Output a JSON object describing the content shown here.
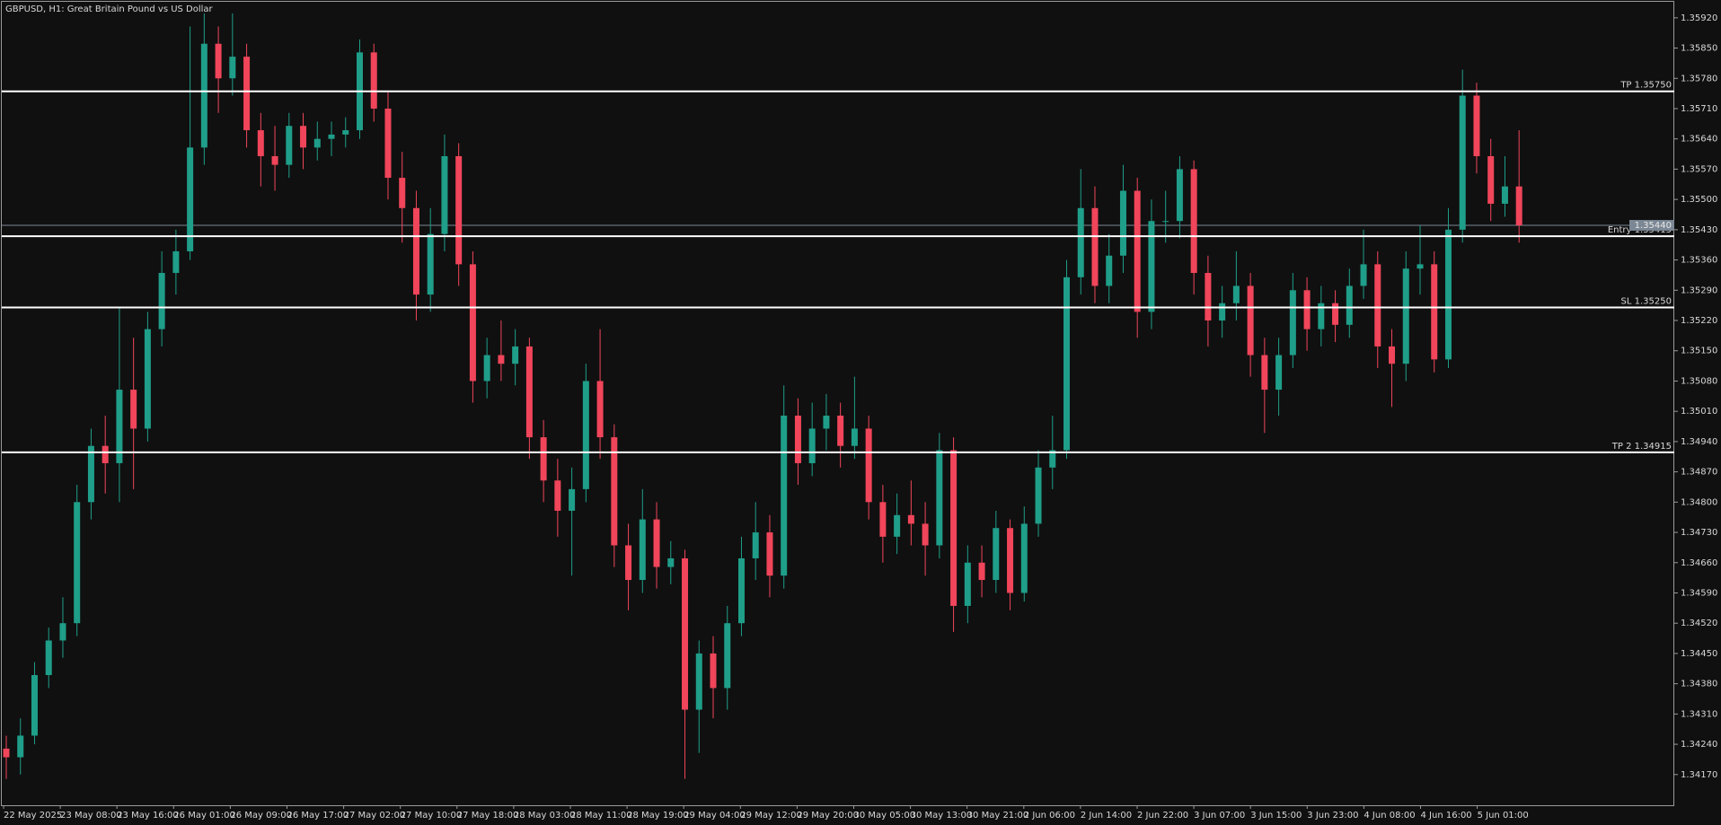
{
  "chart_data": {
    "type": "candlestick",
    "title": "GBPUSD, H1:  Great Britain Pound vs US Dollar",
    "x_labels": [
      "22 May 2025",
      "23 May 08:00",
      "23 May 16:00",
      "26 May 01:00",
      "26 May 09:00",
      "26 May 17:00",
      "27 May 02:00",
      "27 May 10:00",
      "27 May 18:00",
      "28 May 03:00",
      "28 May 11:00",
      "28 May 19:00",
      "29 May 04:00",
      "29 May 12:00",
      "29 May 20:00",
      "30 May 05:00",
      "30 May 13:00",
      "30 May 21:00",
      "2 Jun 06:00",
      "2 Jun 14:00",
      "2 Jun 22:00",
      "3 Jun 07:00",
      "3 Jun 15:00",
      "3 Jun 23:00",
      "4 Jun 08:00",
      "4 Jun 16:00",
      "5 Jun 01:00"
    ],
    "candles": [
      [
        1.3423,
        1.3426,
        1.3416,
        1.3421
      ],
      [
        1.3421,
        1.343,
        1.3417,
        1.3426
      ],
      [
        1.3426,
        1.3443,
        1.3424,
        1.344
      ],
      [
        1.344,
        1.3451,
        1.3437,
        1.3448
      ],
      [
        1.3448,
        1.3458,
        1.3444,
        1.3452
      ],
      [
        1.3452,
        1.3484,
        1.3449,
        1.348
      ],
      [
        1.348,
        1.3497,
        1.3476,
        1.3493
      ],
      [
        1.3493,
        1.35,
        1.3482,
        1.3489
      ],
      [
        1.3489,
        1.3525,
        1.348,
        1.3506
      ],
      [
        1.3506,
        1.3518,
        1.3483,
        1.3497
      ],
      [
        1.3497,
        1.3524,
        1.3494,
        1.352
      ],
      [
        1.352,
        1.3538,
        1.3516,
        1.3533
      ],
      [
        1.3533,
        1.3543,
        1.3528,
        1.3538
      ],
      [
        1.3538,
        1.359,
        1.3536,
        1.3562
      ],
      [
        1.3562,
        1.3593,
        1.3558,
        1.3586
      ],
      [
        1.3586,
        1.359,
        1.357,
        1.3578
      ],
      [
        1.3578,
        1.3593,
        1.3574,
        1.3583
      ],
      [
        1.3583,
        1.3586,
        1.3562,
        1.3566
      ],
      [
        1.3566,
        1.357,
        1.3553,
        1.356
      ],
      [
        1.356,
        1.3567,
        1.3552,
        1.3558
      ],
      [
        1.3558,
        1.357,
        1.3555,
        1.3567
      ],
      [
        1.3567,
        1.357,
        1.3557,
        1.3562
      ],
      [
        1.3562,
        1.3568,
        1.3559,
        1.3564
      ],
      [
        1.3564,
        1.3568,
        1.356,
        1.3565
      ],
      [
        1.3565,
        1.3569,
        1.3562,
        1.3566
      ],
      [
        1.3566,
        1.3587,
        1.3564,
        1.3584
      ],
      [
        1.3584,
        1.3586,
        1.3568,
        1.3571
      ],
      [
        1.3571,
        1.3575,
        1.355,
        1.3555
      ],
      [
        1.3555,
        1.3561,
        1.354,
        1.3548
      ],
      [
        1.3548,
        1.3552,
        1.3522,
        1.3528
      ],
      [
        1.3528,
        1.3548,
        1.3524,
        1.3542
      ],
      [
        1.3542,
        1.3565,
        1.3538,
        1.356
      ],
      [
        1.356,
        1.3563,
        1.353,
        1.3535
      ],
      [
        1.3535,
        1.3538,
        1.3503,
        1.3508
      ],
      [
        1.3508,
        1.3518,
        1.3504,
        1.3514
      ],
      [
        1.3514,
        1.3522,
        1.3508,
        1.3512
      ],
      [
        1.3512,
        1.352,
        1.3507,
        1.3516
      ],
      [
        1.3516,
        1.3518,
        1.349,
        1.3495
      ],
      [
        1.3495,
        1.3499,
        1.348,
        1.3485
      ],
      [
        1.3485,
        1.349,
        1.3472,
        1.3478
      ],
      [
        1.3478,
        1.3488,
        1.3463,
        1.3483
      ],
      [
        1.3483,
        1.3512,
        1.348,
        1.3508
      ],
      [
        1.3508,
        1.352,
        1.349,
        1.3495
      ],
      [
        1.3495,
        1.3498,
        1.3465,
        1.347
      ],
      [
        1.347,
        1.3475,
        1.3455,
        1.3462
      ],
      [
        1.3462,
        1.3483,
        1.3459,
        1.3476
      ],
      [
        1.3476,
        1.348,
        1.346,
        1.3465
      ],
      [
        1.3465,
        1.3471,
        1.3461,
        1.3467
      ],
      [
        1.3467,
        1.3469,
        1.3416,
        1.3432
      ],
      [
        1.3432,
        1.3448,
        1.3422,
        1.3445
      ],
      [
        1.3445,
        1.3449,
        1.343,
        1.3437
      ],
      [
        1.3437,
        1.3456,
        1.3432,
        1.3452
      ],
      [
        1.3452,
        1.3472,
        1.3449,
        1.3467
      ],
      [
        1.3467,
        1.348,
        1.3462,
        1.3473
      ],
      [
        1.3473,
        1.3477,
        1.3458,
        1.3463
      ],
      [
        1.3463,
        1.3507,
        1.346,
        1.35
      ],
      [
        1.35,
        1.3504,
        1.3484,
        1.3489
      ],
      [
        1.3489,
        1.3503,
        1.3486,
        1.3497
      ],
      [
        1.3497,
        1.3505,
        1.3492,
        1.35
      ],
      [
        1.35,
        1.3503,
        1.3488,
        1.3493
      ],
      [
        1.3493,
        1.3509,
        1.349,
        1.3497
      ],
      [
        1.3497,
        1.35,
        1.3476,
        1.348
      ],
      [
        1.348,
        1.3484,
        1.3466,
        1.3472
      ],
      [
        1.3472,
        1.3482,
        1.3468,
        1.3477
      ],
      [
        1.3477,
        1.3485,
        1.347,
        1.3475
      ],
      [
        1.3475,
        1.348,
        1.3463,
        1.347
      ],
      [
        1.347,
        1.3496,
        1.3467,
        1.3492
      ],
      [
        1.3492,
        1.3495,
        1.345,
        1.3456
      ],
      [
        1.3456,
        1.347,
        1.3452,
        1.3466
      ],
      [
        1.3466,
        1.347,
        1.3458,
        1.3462
      ],
      [
        1.3462,
        1.3478,
        1.3459,
        1.3474
      ],
      [
        1.3474,
        1.3476,
        1.3455,
        1.3459
      ],
      [
        1.3459,
        1.3479,
        1.3457,
        1.3475
      ],
      [
        1.3475,
        1.3492,
        1.3472,
        1.3488
      ],
      [
        1.3488,
        1.35,
        1.3483,
        1.3492
      ],
      [
        1.3492,
        1.3536,
        1.349,
        1.3532
      ],
      [
        1.3532,
        1.3557,
        1.3528,
        1.3548
      ],
      [
        1.3548,
        1.3553,
        1.3526,
        1.353
      ],
      [
        1.353,
        1.3542,
        1.3526,
        1.3537
      ],
      [
        1.3537,
        1.3558,
        1.3533,
        1.3552
      ],
      [
        1.3552,
        1.3555,
        1.3518,
        1.3524
      ],
      [
        1.3524,
        1.355,
        1.352,
        1.3545
      ],
      [
        1.3545,
        1.3552,
        1.354,
        1.3545
      ],
      [
        1.3545,
        1.356,
        1.3541,
        1.3557
      ],
      [
        1.3557,
        1.3559,
        1.3528,
        1.3533
      ],
      [
        1.3533,
        1.3537,
        1.3516,
        1.3522
      ],
      [
        1.3522,
        1.353,
        1.3518,
        1.3526
      ],
      [
        1.3526,
        1.3538,
        1.3522,
        1.353
      ],
      [
        1.353,
        1.3533,
        1.3509,
        1.3514
      ],
      [
        1.3514,
        1.3518,
        1.3496,
        1.3506
      ],
      [
        1.3506,
        1.3518,
        1.35,
        1.3514
      ],
      [
        1.3514,
        1.3533,
        1.3511,
        1.3529
      ],
      [
        1.3529,
        1.3532,
        1.3515,
        1.352
      ],
      [
        1.352,
        1.353,
        1.3516,
        1.3526
      ],
      [
        1.3526,
        1.3529,
        1.3517,
        1.3521
      ],
      [
        1.3521,
        1.3534,
        1.3518,
        1.353
      ],
      [
        1.353,
        1.3543,
        1.3527,
        1.3535
      ],
      [
        1.3535,
        1.3538,
        1.3511,
        1.3516
      ],
      [
        1.3516,
        1.352,
        1.3502,
        1.3512
      ],
      [
        1.3512,
        1.3538,
        1.3508,
        1.3534
      ],
      [
        1.3534,
        1.3544,
        1.3528,
        1.3535
      ],
      [
        1.3535,
        1.3538,
        1.351,
        1.3513
      ],
      [
        1.3513,
        1.3548,
        1.3511,
        1.3543
      ],
      [
        1.3543,
        1.358,
        1.354,
        1.3574
      ],
      [
        1.3574,
        1.3577,
        1.3556,
        1.356
      ],
      [
        1.356,
        1.3564,
        1.3545,
        1.3549
      ],
      [
        1.3549,
        1.356,
        1.3546,
        1.3553
      ],
      [
        1.3553,
        1.3566,
        1.354,
        1.3544
      ]
    ],
    "ylim": [
      1.34099,
      1.35957
    ],
    "yticks": [
      {
        "value": 1.3417,
        "label": "1.34170"
      },
      {
        "value": 1.3424,
        "label": "1.34240"
      },
      {
        "value": 1.3431,
        "label": "1.34310"
      },
      {
        "value": 1.3438,
        "label": "1.34380"
      },
      {
        "value": 1.3445,
        "label": "1.34450"
      },
      {
        "value": 1.3452,
        "label": "1.34520"
      },
      {
        "value": 1.3459,
        "label": "1.34590"
      },
      {
        "value": 1.3466,
        "label": "1.34660"
      },
      {
        "value": 1.3473,
        "label": "1.34730"
      },
      {
        "value": 1.348,
        "label": "1.34800"
      },
      {
        "value": 1.3487,
        "label": "1.34870"
      },
      {
        "value": 1.3494,
        "label": "1.34940"
      },
      {
        "value": 1.3501,
        "label": "1.35010"
      },
      {
        "value": 1.3508,
        "label": "1.35080"
      },
      {
        "value": 1.3515,
        "label": "1.35150"
      },
      {
        "value": 1.3522,
        "label": "1.35220"
      },
      {
        "value": 1.3529,
        "label": "1.35290"
      },
      {
        "value": 1.3536,
        "label": "1.35360"
      },
      {
        "value": 1.3543,
        "label": "1.35430"
      },
      {
        "value": 1.355,
        "label": "1.35500"
      },
      {
        "value": 1.3557,
        "label": "1.35570"
      },
      {
        "value": 1.3564,
        "label": "1.35640"
      },
      {
        "value": 1.3571,
        "label": "1.35710"
      },
      {
        "value": 1.3578,
        "label": "1.35780"
      },
      {
        "value": 1.3585,
        "label": "1.35850"
      },
      {
        "value": 1.3592,
        "label": "1.35920"
      }
    ],
    "levels": [
      {
        "value": 1.3575,
        "label": "TP 1.35750"
      },
      {
        "value": 1.35415,
        "label": "Entry 1.35415"
      },
      {
        "value": 1.3525,
        "label": "SL 1.35250"
      },
      {
        "value": 1.34915,
        "label": "TP 2 1.34915"
      }
    ],
    "current_price": {
      "value": 1.3544,
      "label": "1.35440"
    },
    "up_color": "#1f9e89",
    "down_color": "#f0455a",
    "level_color": "#ffffff"
  }
}
